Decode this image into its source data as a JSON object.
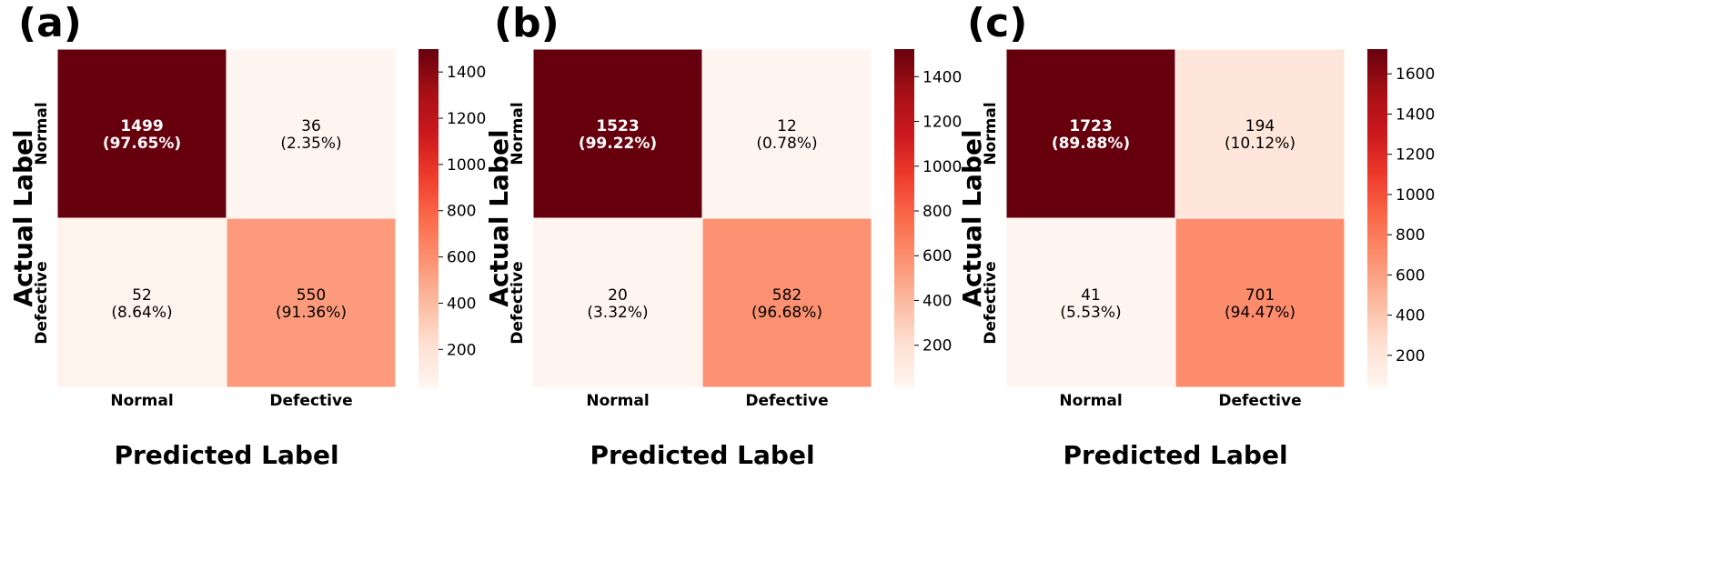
{
  "colormap": {
    "name": "Reds",
    "stops": [
      "#fff5f0",
      "#fee0d2",
      "#fcbba1",
      "#fc9272",
      "#fb6a4a",
      "#ef3b2c",
      "#cb181d",
      "#a50f15",
      "#67000d"
    ]
  },
  "chart_data": [
    {
      "panel": "(a)",
      "type": "heatmap",
      "xlabel": "Predicted Label",
      "ylabel": "Actual Label",
      "x_categories": [
        "Normal",
        "Defective"
      ],
      "y_categories": [
        "Normal",
        "Defective"
      ],
      "values": [
        [
          1499,
          36
        ],
        [
          52,
          550
        ]
      ],
      "percentages": [
        [
          "97.65%",
          "2.35%"
        ],
        [
          "8.64%",
          "91.36%"
        ]
      ],
      "vmin": 36,
      "vmax": 1499,
      "colorbar_ticks": [
        200,
        400,
        600,
        800,
        1000,
        1200,
        1400
      ]
    },
    {
      "panel": "(b)",
      "type": "heatmap",
      "xlabel": "Predicted Label",
      "ylabel": "Actual Label",
      "x_categories": [
        "Normal",
        "Defective"
      ],
      "y_categories": [
        "Normal",
        "Defective"
      ],
      "values": [
        [
          1523,
          12
        ],
        [
          20,
          582
        ]
      ],
      "percentages": [
        [
          "99.22%",
          "0.78%"
        ],
        [
          "3.32%",
          "96.68%"
        ]
      ],
      "vmin": 12,
      "vmax": 1523,
      "colorbar_ticks": [
        200,
        400,
        600,
        800,
        1000,
        1200,
        1400
      ]
    },
    {
      "panel": "(c)",
      "type": "heatmap",
      "xlabel": "Predicted Label",
      "ylabel": "Actual Label",
      "x_categories": [
        "Normal",
        "Defective"
      ],
      "y_categories": [
        "Normal",
        "Defective"
      ],
      "values": [
        [
          1723,
          194
        ],
        [
          41,
          701
        ]
      ],
      "percentages": [
        [
          "89.88%",
          "10.12%"
        ],
        [
          "5.53%",
          "94.47%"
        ]
      ],
      "vmin": 41,
      "vmax": 1723,
      "colorbar_ticks": [
        200,
        400,
        600,
        800,
        1000,
        1200,
        1400,
        1600
      ]
    }
  ]
}
